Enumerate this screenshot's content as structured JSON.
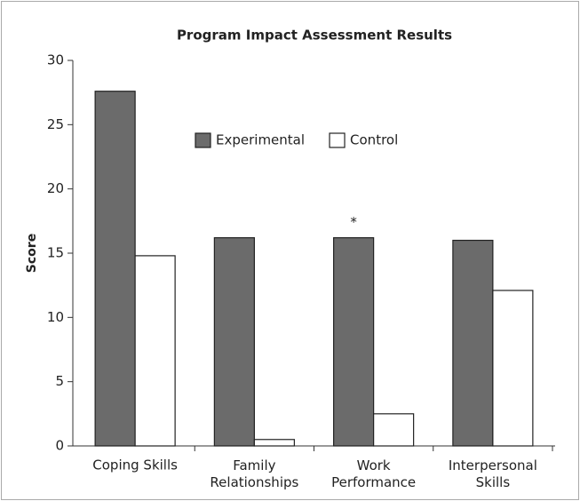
{
  "chart_data": {
    "type": "bar",
    "title": "Program Impact Assessment Results",
    "ylabel": "Score",
    "categories": [
      "Coping Skills",
      "Family Relationships",
      "Work Performance",
      "Interpersonal Skills"
    ],
    "series": [
      {
        "name": "Experimental",
        "color": "#6b6b6b",
        "values": [
          27.6,
          16.2,
          16.2,
          16.0
        ]
      },
      {
        "name": "Control",
        "color": "#ffffff",
        "values": [
          14.8,
          0.5,
          2.5,
          12.1
        ]
      }
    ],
    "annotations": [
      {
        "text": "*",
        "category": 2,
        "series": 0
      }
    ],
    "ylim": [
      0,
      30
    ],
    "yticks": [
      0,
      5,
      10,
      15,
      20,
      25,
      30
    ],
    "grid": false,
    "legend": "top"
  }
}
